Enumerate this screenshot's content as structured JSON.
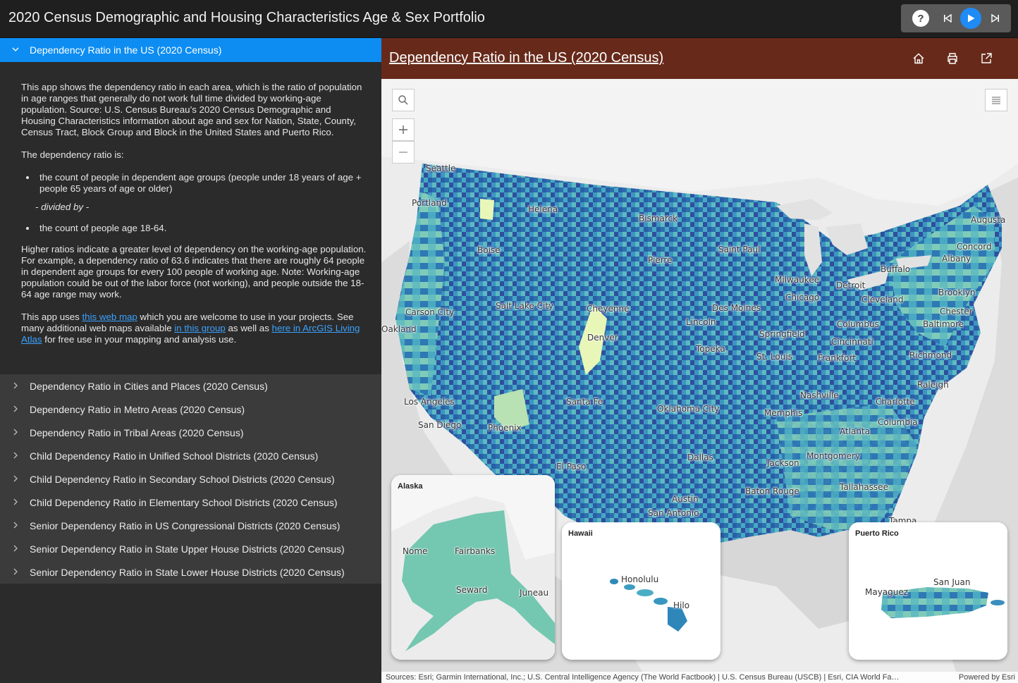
{
  "header": {
    "title": "2020 Census Demographic and Housing Characteristics Age & Sex Portfolio",
    "help_label": "?"
  },
  "panel": {
    "active_item": "Dependency Ratio in the US (2020 Census)",
    "description": {
      "p1": "This app shows the dependency ratio in each area, which is the ratio of population in age ranges that generally do not work full time divided by working-age population. Source: U.S. Census Bureau’s 2020 Census Demographic and Housing Characteristics information about age and sex for Nation, State, County, Census Tract, Block Group and Block in the United States and Puerto Rico.",
      "p2": "The dependency ratio is:",
      "bullet1": "the count of people in dependent age groups (people under 18 years of age + people 65 years of age or older)",
      "divided": "- divided by -",
      "bullet2": "the count of people age 18-64.",
      "p3": "Higher ratios indicate a greater level of dependency on the working-age population. For example, a dependency ratio of 63.6 indicates that there are roughly 64 people in dependent age groups for every 100 people of working age. Note: Working-age population could be out of the labor force (not working), and people outside the 18-64 age range may work.",
      "p4_a": "This app uses ",
      "p4_link1": "this web map",
      "p4_b": " which you are welcome to use in your projects. See many additional web maps available ",
      "p4_link2": "in this group",
      "p4_c": " as well as ",
      "p4_link3": "here in ArcGIS Living Atlas",
      "p4_d": " for free use in your mapping and analysis use."
    },
    "items": [
      "Dependency Ratio in Cities and Places (2020 Census)",
      "Dependency Ratio in Metro Areas (2020 Census)",
      "Dependency Ratio in Tribal Areas (2020 Census)",
      "Child Dependency Ratio in Unified School Districts (2020 Census)",
      "Child Dependency Ratio in Secondary School Districts (2020 Census)",
      "Child Dependency Ratio in Elementary School Districts (2020 Census)",
      "Senior Dependency Ratio in US Congressional Districts (2020 Census)",
      "Senior Dependency Ratio in State Upper House Districts (2020 Census)",
      "Senior Dependency Ratio in State Lower House Districts (2020 Census)"
    ]
  },
  "map": {
    "title": "Dependency Ratio in the US (2020 Census)",
    "cities": [
      "Seattle",
      "Portland",
      "Helena",
      "Bismarck",
      "Boise",
      "Saint Paul",
      "Augusta",
      "Concord",
      "Albany",
      "Pierre",
      "Buffalo",
      "Milwaukee",
      "Detroit",
      "Brooklyn",
      "Chicago",
      "Cleveland",
      "Carson City",
      "Salt Lake City",
      "Cheyenne",
      "Des Moines",
      "Chester",
      "Oakland",
      "Lincoln",
      "Columbus",
      "Baltimore",
      "Springfield",
      "Cincinnati",
      "Denver",
      "Topeka",
      "St. Louis",
      "Frankfort",
      "Richmond",
      "Nashville",
      "Raleigh",
      "Los Angeles",
      "Santa Fe",
      "Oklahoma City",
      "Memphis",
      "Charlotte",
      "San Diego",
      "Phoenix",
      "Columbia",
      "Atlanta",
      "Montgomery",
      "El Paso",
      "Dallas",
      "Jackson",
      "Tallahassee",
      "Baton Rouge",
      "Austin",
      "San Antonio",
      "Tampa"
    ],
    "insets": {
      "alaska": {
        "title": "Alaska",
        "cities": [
          "Nome",
          "Fairbanks",
          "Seward",
          "Juneau"
        ]
      },
      "hawaii": {
        "title": "Hawaii",
        "cities": [
          "Honolulu",
          "Hilo"
        ]
      },
      "puerto_rico": {
        "title": "Puerto Rico",
        "cities": [
          "San Juan",
          "Mayaguez"
        ]
      }
    },
    "attribution": "Sources: Esri; Garmin International, Inc.; U.S. Central Intelligence Agency (The World Factbook) | U.S. Census Bureau (USCB) | Esri, CIA World Fa…",
    "powered_by": "Powered by Esri"
  },
  "colors": {
    "accent": "#0d8df2",
    "map_header": "#672a1a",
    "ratio_low": "#c7e9b4",
    "ratio_mid": "#41b6c4",
    "ratio_high": "#253494"
  }
}
